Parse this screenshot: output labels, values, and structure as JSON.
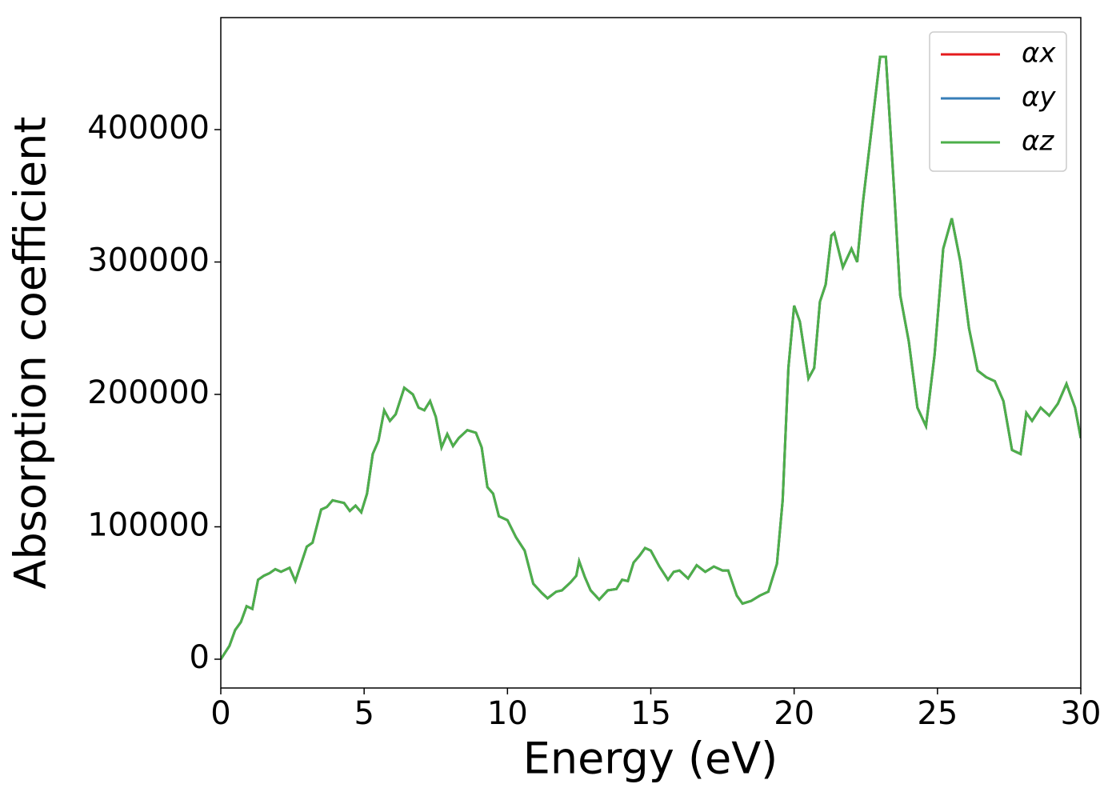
{
  "chart_data": {
    "type": "line",
    "xlabel": "Energy (eV)",
    "ylabel": "Absorption coefficient",
    "x": [
      0,
      0.3,
      0.5,
      0.7,
      0.9,
      1.1,
      1.3,
      1.5,
      1.7,
      1.9,
      2.1,
      2.4,
      2.6,
      2.8,
      3.0,
      3.2,
      3.5,
      3.7,
      3.9,
      4.1,
      4.3,
      4.5,
      4.7,
      4.9,
      5.1,
      5.3,
      5.5,
      5.7,
      5.9,
      6.1,
      6.4,
      6.7,
      6.9,
      7.1,
      7.3,
      7.5,
      7.7,
      7.9,
      8.1,
      8.3,
      8.6,
      8.9,
      9.1,
      9.3,
      9.5,
      9.7,
      10.0,
      10.3,
      10.6,
      10.9,
      11.2,
      11.4,
      11.7,
      11.9,
      12.2,
      12.4,
      12.5,
      12.7,
      12.9,
      13.2,
      13.5,
      13.8,
      14.0,
      14.2,
      14.4,
      14.6,
      14.8,
      15.0,
      15.3,
      15.6,
      15.8,
      16.0,
      16.3,
      16.6,
      16.9,
      17.2,
      17.5,
      17.7,
      18.0,
      18.2,
      18.5,
      18.8,
      19.1,
      19.4,
      19.6,
      19.8,
      20.0,
      20.2,
      20.5,
      20.7,
      20.9,
      21.1,
      21.3,
      21.4,
      21.7,
      22.0,
      22.2,
      22.4,
      22.7,
      23.0,
      23.2,
      23.5,
      23.7,
      24.0,
      24.3,
      24.6,
      24.9,
      25.2,
      25.5,
      25.8,
      26.1,
      26.4,
      26.7,
      27.0,
      27.3,
      27.6,
      27.9,
      28.1,
      28.3,
      28.6,
      28.9,
      29.2,
      29.5,
      29.8,
      30.0
    ],
    "series": [
      {
        "name": "αx",
        "color": "#e41a1c",
        "values": [
          0,
          10000,
          22000,
          28000,
          40000,
          38000,
          60000,
          63000,
          65000,
          68000,
          66000,
          69000,
          59000,
          72000,
          85000,
          88000,
          113000,
          115000,
          120000,
          119000,
          118000,
          112000,
          116000,
          111000,
          125000,
          155000,
          165000,
          188000,
          180000,
          185000,
          205000,
          200000,
          190000,
          188000,
          195000,
          183000,
          160000,
          170000,
          161000,
          167000,
          173000,
          171000,
          160000,
          130000,
          125000,
          108000,
          105000,
          92000,
          82000,
          57000,
          50000,
          46000,
          51000,
          52000,
          58000,
          63000,
          74000,
          62000,
          52000,
          45000,
          52000,
          53000,
          60000,
          59000,
          73000,
          78000,
          84000,
          82000,
          70000,
          60000,
          66000,
          67000,
          61000,
          71000,
          66000,
          70000,
          67000,
          67000,
          48000,
          42000,
          44000,
          48000,
          51000,
          72000,
          120000,
          220000,
          267000,
          255000,
          212000,
          220000,
          270000,
          283000,
          320000,
          322000,
          296000,
          310000,
          300000,
          345000,
          400000,
          455000,
          455000,
          350000,
          275000,
          240000,
          190000,
          176000,
          230000,
          310000,
          333000,
          300000,
          250000,
          218000,
          213000,
          210000,
          195000,
          158000,
          155000,
          186000,
          180000,
          190000,
          184000,
          193000,
          208000,
          190000,
          167000
        ]
      },
      {
        "name": "αy",
        "color": "#377eb8",
        "values": [
          0,
          10000,
          22000,
          28000,
          40000,
          38000,
          60000,
          63000,
          65000,
          68000,
          66000,
          69000,
          59000,
          72000,
          85000,
          88000,
          113000,
          115000,
          120000,
          119000,
          118000,
          112000,
          116000,
          111000,
          125000,
          155000,
          165000,
          188000,
          180000,
          185000,
          205000,
          200000,
          190000,
          188000,
          195000,
          183000,
          160000,
          170000,
          161000,
          167000,
          173000,
          171000,
          160000,
          130000,
          125000,
          108000,
          105000,
          92000,
          82000,
          57000,
          50000,
          46000,
          51000,
          52000,
          58000,
          63000,
          74000,
          62000,
          52000,
          45000,
          52000,
          53000,
          60000,
          59000,
          73000,
          78000,
          84000,
          82000,
          70000,
          60000,
          66000,
          67000,
          61000,
          71000,
          66000,
          70000,
          67000,
          67000,
          48000,
          42000,
          44000,
          48000,
          51000,
          72000,
          120000,
          220000,
          267000,
          255000,
          212000,
          220000,
          270000,
          283000,
          320000,
          322000,
          296000,
          310000,
          300000,
          345000,
          400000,
          455000,
          455000,
          350000,
          275000,
          240000,
          190000,
          176000,
          230000,
          310000,
          333000,
          300000,
          250000,
          218000,
          213000,
          210000,
          195000,
          158000,
          155000,
          186000,
          180000,
          190000,
          184000,
          193000,
          208000,
          190000,
          167000
        ]
      },
      {
        "name": "αz",
        "color": "#4daf4a",
        "values": [
          0,
          10000,
          22000,
          28000,
          40000,
          38000,
          60000,
          63000,
          65000,
          68000,
          66000,
          69000,
          59000,
          72000,
          85000,
          88000,
          113000,
          115000,
          120000,
          119000,
          118000,
          112000,
          116000,
          111000,
          125000,
          155000,
          165000,
          188000,
          180000,
          185000,
          205000,
          200000,
          190000,
          188000,
          195000,
          183000,
          160000,
          170000,
          161000,
          167000,
          173000,
          171000,
          160000,
          130000,
          125000,
          108000,
          105000,
          92000,
          82000,
          57000,
          50000,
          46000,
          51000,
          52000,
          58000,
          63000,
          74000,
          62000,
          52000,
          45000,
          52000,
          53000,
          60000,
          59000,
          73000,
          78000,
          84000,
          82000,
          70000,
          60000,
          66000,
          67000,
          61000,
          71000,
          66000,
          70000,
          67000,
          67000,
          48000,
          42000,
          44000,
          48000,
          51000,
          72000,
          120000,
          220000,
          267000,
          255000,
          212000,
          220000,
          270000,
          283000,
          320000,
          322000,
          296000,
          310000,
          300000,
          345000,
          400000,
          455000,
          455000,
          350000,
          275000,
          240000,
          190000,
          176000,
          230000,
          310000,
          333000,
          300000,
          250000,
          218000,
          213000,
          210000,
          195000,
          158000,
          155000,
          186000,
          180000,
          190000,
          184000,
          193000,
          208000,
          190000,
          167000
        ]
      }
    ],
    "xlim": [
      0,
      30
    ],
    "xticks": [
      0,
      5,
      10,
      15,
      20,
      25,
      30
    ],
    "ylim": [
      -21750,
      484600
    ],
    "yticks": [
      0,
      100000,
      200000,
      300000,
      400000
    ],
    "legend": "upper right"
  }
}
